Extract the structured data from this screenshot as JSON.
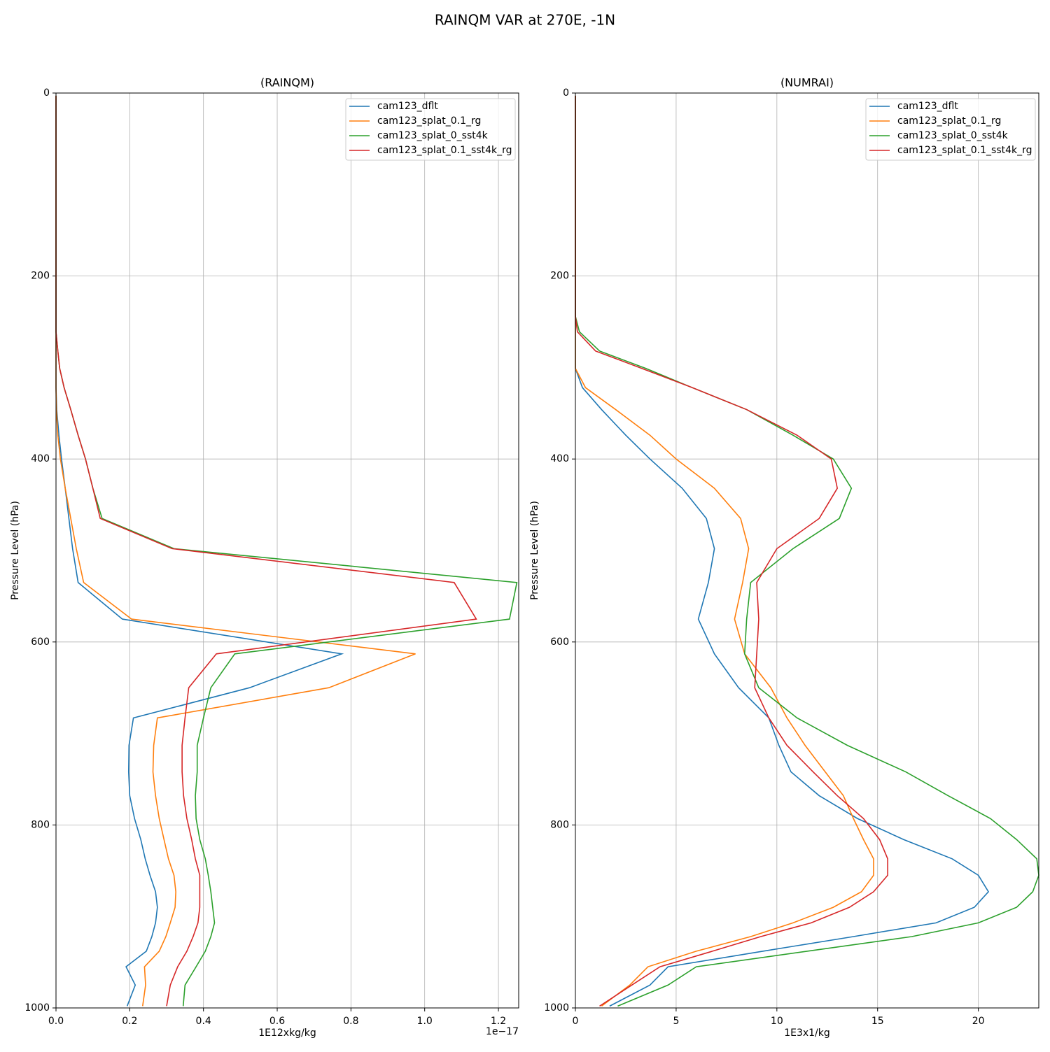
{
  "title": "RAINQM VAR at 270E, -1N",
  "chart_data": [
    {
      "type": "line",
      "title": "(RAINQM)",
      "xlabel": "1E12xkg/kg",
      "x_offset_label": "1e−17",
      "ylabel": "Pressure Level (hPa)",
      "y": [
        3,
        50,
        100,
        150,
        200,
        225,
        244,
        261,
        282,
        301,
        322,
        346,
        374,
        400,
        432,
        465,
        498,
        535,
        575,
        613,
        650,
        683,
        713,
        742,
        768,
        793,
        816,
        837,
        855,
        873,
        890,
        907,
        922,
        938,
        955,
        975,
        998
      ],
      "xlim": [
        0,
        1.255
      ],
      "xticks": [
        {
          "value": 0,
          "label": "0.0"
        },
        0.2,
        0.4,
        0.6,
        0.8,
        {
          "value": 1,
          "label": "1.0"
        },
        1.2
      ],
      "ylim": [
        0,
        1000
      ],
      "yticks": [
        0,
        200,
        400,
        600,
        800,
        1000
      ],
      "invert_y": true,
      "grid": true,
      "legend": "upper right",
      "series": [
        {
          "name": "cam123_dflt",
          "color": "#1f77b4",
          "values": [
            0,
            0,
            0,
            0,
            0,
            0,
            0,
            0,
            0,
            0,
            0,
            0.002,
            0.008,
            0.015,
            0.025,
            0.035,
            0.045,
            0.06,
            0.18,
            0.775,
            0.525,
            0.21,
            0.198,
            0.197,
            0.2,
            0.213,
            0.23,
            0.242,
            0.255,
            0.27,
            0.275,
            0.27,
            0.26,
            0.245,
            0.19,
            0.215,
            0.193
          ]
        },
        {
          "name": "cam123_splat_0.1_rg",
          "color": "#ff7f0e",
          "values": [
            0,
            0,
            0,
            0,
            0,
            0,
            0,
            0,
            0,
            0,
            0,
            0.001,
            0.005,
            0.012,
            0.025,
            0.04,
            0.055,
            0.075,
            0.205,
            0.975,
            0.74,
            0.275,
            0.265,
            0.263,
            0.27,
            0.28,
            0.293,
            0.305,
            0.32,
            0.325,
            0.323,
            0.31,
            0.298,
            0.28,
            0.24,
            0.243,
            0.235
          ]
        },
        {
          "name": "cam123_splat_0_sst4k",
          "color": "#2ca02c",
          "values": [
            0,
            0,
            0,
            0,
            0,
            0,
            0,
            0,
            0.005,
            0.01,
            0.022,
            0.04,
            0.06,
            0.08,
            0.1,
            0.125,
            0.32,
            1.25,
            1.23,
            0.485,
            0.42,
            0.4,
            0.383,
            0.383,
            0.378,
            0.38,
            0.39,
            0.405,
            0.413,
            0.42,
            0.425,
            0.43,
            0.42,
            0.405,
            0.38,
            0.35,
            0.345
          ]
        },
        {
          "name": "cam123_splat_0.1_sst4k_rg",
          "color": "#d62728",
          "values": [
            0,
            0,
            0,
            0,
            0,
            0,
            0,
            0,
            0.005,
            0.01,
            0.022,
            0.04,
            0.06,
            0.08,
            0.1,
            0.12,
            0.315,
            1.08,
            1.14,
            0.435,
            0.36,
            0.35,
            0.342,
            0.342,
            0.346,
            0.355,
            0.368,
            0.378,
            0.39,
            0.39,
            0.39,
            0.385,
            0.372,
            0.355,
            0.33,
            0.31,
            0.3
          ]
        }
      ]
    },
    {
      "type": "line",
      "title": "(NUMRAI)",
      "xlabel": "1E3x1/kg",
      "ylabel": "Pressure Level (hPa)",
      "y": [
        3,
        50,
        100,
        150,
        200,
        225,
        244,
        261,
        282,
        301,
        322,
        346,
        374,
        400,
        432,
        465,
        498,
        535,
        575,
        613,
        650,
        683,
        713,
        742,
        768,
        793,
        816,
        837,
        855,
        873,
        890,
        907,
        922,
        938,
        955,
        975,
        998
      ],
      "xlim": [
        0,
        23
      ],
      "xticks": [
        0,
        5,
        10,
        15,
        20
      ],
      "ylim": [
        0,
        1000
      ],
      "yticks": [
        0,
        200,
        400,
        600,
        800,
        1000
      ],
      "invert_y": true,
      "grid": true,
      "legend": "upper right",
      "series": [
        {
          "name": "cam123_dflt",
          "color": "#1f77b4",
          "values": [
            0,
            0,
            0,
            0,
            0,
            0,
            0,
            0,
            0,
            0,
            0.35,
            1.3,
            2.5,
            3.7,
            5.3,
            6.5,
            6.9,
            6.6,
            6.1,
            6.9,
            8.1,
            9.6,
            10.1,
            10.7,
            12.1,
            14.0,
            16.3,
            18.7,
            20.0,
            20.5,
            19.8,
            17.9,
            13.8,
            9.3,
            4.6,
            3.7,
            1.7
          ]
        },
        {
          "name": "cam123_splat_0.1_rg",
          "color": "#ff7f0e",
          "values": [
            0,
            0,
            0,
            0,
            0,
            0,
            0,
            0,
            0,
            0,
            0.5,
            2.0,
            3.7,
            5.0,
            6.9,
            8.2,
            8.6,
            8.3,
            7.9,
            8.4,
            9.7,
            10.5,
            11.4,
            12.4,
            13.3,
            13.8,
            14.3,
            14.8,
            14.8,
            14.2,
            12.8,
            10.8,
            8.7,
            6.0,
            3.6,
            2.7,
            1.3
          ]
        },
        {
          "name": "cam123_splat_0_sst4k",
          "color": "#2ca02c",
          "values": [
            0,
            0,
            0,
            0,
            0,
            0,
            0,
            0.2,
            1.2,
            3.5,
            5.8,
            8.5,
            10.8,
            12.8,
            13.7,
            13.1,
            10.8,
            8.7,
            8.5,
            8.4,
            9.1,
            11.0,
            13.5,
            16.4,
            18.5,
            20.6,
            21.9,
            22.9,
            23.0,
            22.7,
            21.9,
            20.0,
            16.7,
            11.5,
            6.0,
            4.6,
            2.1
          ]
        },
        {
          "name": "cam123_splat_0.1_sst4k_rg",
          "color": "#d62728",
          "values": [
            0,
            0,
            0,
            0,
            0,
            0,
            0,
            0.1,
            1.0,
            3.3,
            5.8,
            8.5,
            11.0,
            12.7,
            13.0,
            12.1,
            10.0,
            9.0,
            9.1,
            9.0,
            8.9,
            9.6,
            10.5,
            11.8,
            13.0,
            14.3,
            15.1,
            15.5,
            15.5,
            14.8,
            13.6,
            11.7,
            9.2,
            6.8,
            4.2,
            2.8,
            1.2
          ]
        }
      ]
    }
  ]
}
